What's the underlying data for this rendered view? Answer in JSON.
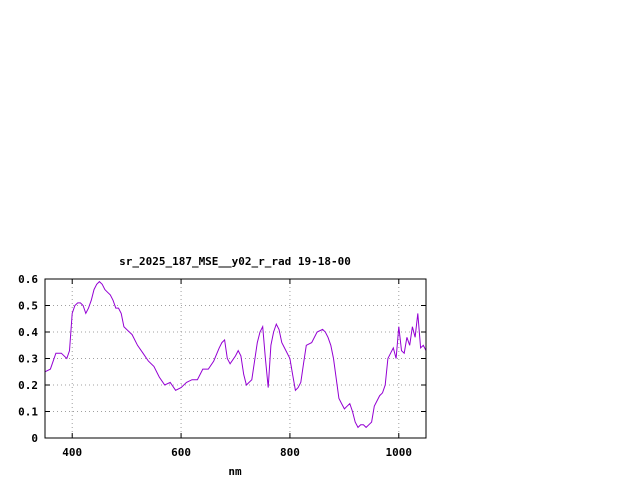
{
  "chart_data": {
    "type": "line",
    "title": "sr_2025_187_MSE__y02_r_rad 19-18-00",
    "xlabel": "nm",
    "ylabel": "",
    "xlim": [
      350,
      1050
    ],
    "ylim": [
      0,
      0.6
    ],
    "xticks": [
      400,
      600,
      800,
      1000
    ],
    "yticks": [
      0,
      0.1,
      0.2,
      0.3,
      0.4,
      0.5,
      0.6
    ],
    "ytick_labels": [
      "0",
      "0.1",
      "0.2",
      "0.3",
      "0.4",
      "0.5",
      "0.6"
    ],
    "grid": true,
    "legend": "none",
    "line_color": "#9400d3",
    "series": [
      {
        "x": [
          350,
          360,
          370,
          380,
          390,
          395,
          400,
          405,
          410,
          415,
          420,
          425,
          430,
          435,
          440,
          445,
          450,
          455,
          460,
          465,
          470,
          475,
          480,
          485,
          490,
          495,
          500,
          510,
          520,
          530,
          540,
          550,
          560,
          570,
          580,
          590,
          600,
          610,
          620,
          630,
          640,
          650,
          660,
          670,
          675,
          680,
          685,
          690,
          700,
          705,
          710,
          715,
          720,
          730,
          740,
          745,
          750,
          755,
          760,
          765,
          770,
          775,
          780,
          785,
          790,
          800,
          805,
          810,
          815,
          820,
          825,
          830,
          840,
          850,
          860,
          865,
          870,
          875,
          880,
          890,
          895,
          900,
          905,
          910,
          915,
          920,
          925,
          930,
          935,
          940,
          945,
          950,
          955,
          960,
          965,
          970,
          975,
          980,
          985,
          990,
          995,
          1000,
          1005,
          1010,
          1015,
          1020,
          1025,
          1030,
          1035,
          1040,
          1045,
          1050
        ],
        "y": [
          0.25,
          0.26,
          0.32,
          0.32,
          0.3,
          0.33,
          0.47,
          0.5,
          0.51,
          0.51,
          0.5,
          0.47,
          0.49,
          0.52,
          0.56,
          0.58,
          0.59,
          0.58,
          0.56,
          0.55,
          0.54,
          0.52,
          0.49,
          0.49,
          0.47,
          0.42,
          0.41,
          0.39,
          0.35,
          0.32,
          0.29,
          0.27,
          0.23,
          0.2,
          0.21,
          0.18,
          0.19,
          0.21,
          0.22,
          0.22,
          0.26,
          0.26,
          0.29,
          0.34,
          0.36,
          0.37,
          0.3,
          0.28,
          0.31,
          0.33,
          0.31,
          0.24,
          0.2,
          0.22,
          0.36,
          0.4,
          0.42,
          0.3,
          0.19,
          0.35,
          0.4,
          0.43,
          0.41,
          0.36,
          0.34,
          0.3,
          0.24,
          0.18,
          0.19,
          0.21,
          0.28,
          0.35,
          0.36,
          0.4,
          0.41,
          0.4,
          0.38,
          0.35,
          0.3,
          0.15,
          0.13,
          0.11,
          0.12,
          0.13,
          0.1,
          0.06,
          0.04,
          0.05,
          0.05,
          0.04,
          0.05,
          0.06,
          0.12,
          0.14,
          0.16,
          0.17,
          0.2,
          0.3,
          0.32,
          0.34,
          0.3,
          0.42,
          0.33,
          0.32,
          0.38,
          0.35,
          0.42,
          0.38,
          0.47,
          0.34,
          0.35,
          0.33
        ]
      }
    ]
  }
}
